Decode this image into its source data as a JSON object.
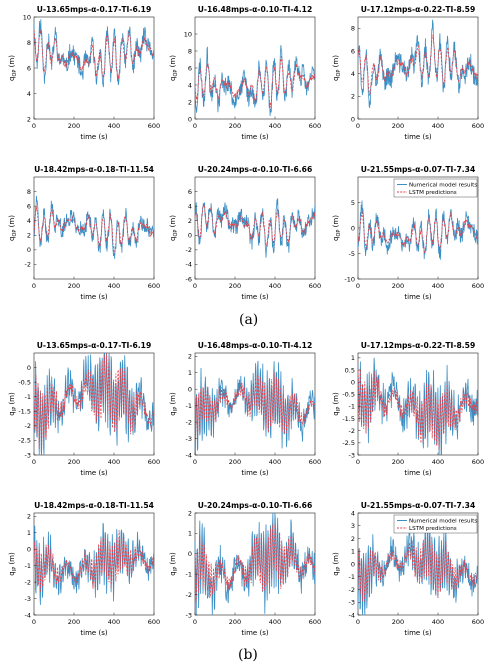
{
  "captions": {
    "a": "(a)",
    "b": "(b)"
  },
  "colors": {
    "numerical": "#3b8fc4",
    "lstm": "#e2434b"
  },
  "chart_data": [
    {
      "type": "line",
      "panel": "a",
      "title": "U-13.65mps-α-0.17-TI-6.19",
      "xlabel": "time (s)",
      "ylabel": "q_OP (m)",
      "xlim": [
        0,
        600
      ],
      "ylim": [
        2,
        10
      ],
      "xticks": [
        0,
        200,
        400,
        600
      ],
      "yticks": [
        2,
        4,
        6,
        8,
        10
      ],
      "mean": 7.0,
      "amp_num": 1.7,
      "amp_lstm": 1.4,
      "seed": 11,
      "series": [
        {
          "name": "Numerical model results"
        },
        {
          "name": "LSTM predictions"
        }
      ]
    },
    {
      "type": "line",
      "panel": "a",
      "title": "U-16.48mps-α-0.10-TI-4.12",
      "xlabel": "time (s)",
      "ylabel": "q_OP (m)",
      "xlim": [
        0,
        600
      ],
      "ylim": [
        0,
        12
      ],
      "xticks": [
        0,
        200,
        400,
        600
      ],
      "yticks": [
        0,
        2,
        4,
        6,
        8,
        10
      ],
      "mean": 4.2,
      "amp_num": 2.6,
      "amp_lstm": 2.0,
      "seed": 23,
      "series": [
        {
          "name": "Numerical model results"
        },
        {
          "name": "LSTM predictions"
        }
      ]
    },
    {
      "type": "line",
      "panel": "a",
      "title": "U-17.12mps-α-0.22-TI-8.59",
      "xlabel": "time (s)",
      "ylabel": "q_OP (m)",
      "xlim": [
        0,
        600
      ],
      "ylim": [
        0,
        9
      ],
      "xticks": [
        0,
        200,
        400,
        600
      ],
      "yticks": [
        0,
        2,
        4,
        6,
        8
      ],
      "mean": 4.6,
      "amp_num": 2.0,
      "amp_lstm": 1.6,
      "seed": 37,
      "series": [
        {
          "name": "Numerical model results"
        },
        {
          "name": "LSTM predictions"
        }
      ]
    },
    {
      "type": "line",
      "panel": "a",
      "title": "U-18.42mps-α-0.18-TI-11.54",
      "xlabel": "time (s)",
      "ylabel": "q_OP (m)",
      "xlim": [
        0,
        600
      ],
      "ylim": [
        -4,
        10
      ],
      "xticks": [
        0,
        200,
        400,
        600
      ],
      "yticks": [
        -2,
        0,
        2,
        4,
        6,
        8
      ],
      "mean": 3.0,
      "amp_num": 2.5,
      "amp_lstm": 2.0,
      "seed": 41,
      "series": [
        {
          "name": "Numerical model results"
        },
        {
          "name": "LSTM predictions"
        }
      ]
    },
    {
      "type": "line",
      "panel": "a",
      "title": "U-20.24mps-α-0.10-TI-6.66",
      "xlabel": "time (s)",
      "ylabel": "q_OP (m)",
      "xlim": [
        0,
        600
      ],
      "ylim": [
        -6,
        8
      ],
      "xticks": [
        0,
        200,
        400,
        600
      ],
      "yticks": [
        -6,
        -4,
        -2,
        0,
        2,
        4,
        6
      ],
      "mean": 1.5,
      "amp_num": 2.6,
      "amp_lstm": 2.0,
      "seed": 53,
      "series": [
        {
          "name": "Numerical model results"
        },
        {
          "name": "LSTM predictions"
        }
      ]
    },
    {
      "type": "line",
      "panel": "a",
      "title": "U-21.55mps-α-0.07-TI-7.34",
      "xlabel": "time (s)",
      "ylabel": "q_OP (m)",
      "xlim": [
        0,
        600
      ],
      "ylim": [
        -10,
        10
      ],
      "xticks": [
        0,
        200,
        400,
        600
      ],
      "yticks": [
        -10,
        -5,
        0,
        5
      ],
      "mean": -1.0,
      "amp_num": 3.6,
      "amp_lstm": 2.8,
      "seed": 67,
      "legend": "top-right",
      "series": [
        {
          "name": "Numerical model results"
        },
        {
          "name": "LSTM predictions"
        }
      ]
    },
    {
      "type": "line",
      "panel": "b",
      "title": "U-13.65mps-α-0.17-TI-6.19",
      "xlabel": "time (s)",
      "ylabel": "q_IP (m)",
      "xlim": [
        0,
        600
      ],
      "ylim": [
        -3,
        0.5
      ],
      "xticks": [
        0,
        200,
        400,
        600
      ],
      "yticks": [
        -3,
        -2.5,
        -2,
        -1.5,
        -1,
        -0.5,
        0
      ],
      "mean": -1.1,
      "amp_num": 1.25,
      "amp_lstm": 1.05,
      "seed": 71,
      "series": [
        {
          "name": "Numerical model results"
        },
        {
          "name": "LSTM predictions"
        }
      ]
    },
    {
      "type": "line",
      "panel": "b",
      "title": "U-16.48mps-α-0.10-TI-4.12",
      "xlabel": "time (s)",
      "ylabel": "q_IP (m)",
      "xlim": [
        0,
        600
      ],
      "ylim": [
        -4,
        2.2
      ],
      "xticks": [
        0,
        200,
        400,
        600
      ],
      "yticks": [
        -4,
        -3,
        -2,
        -1,
        0,
        1,
        2
      ],
      "mean": -0.9,
      "amp_num": 1.8,
      "amp_lstm": 1.4,
      "seed": 83,
      "series": [
        {
          "name": "Numerical model results"
        },
        {
          "name": "LSTM predictions"
        }
      ]
    },
    {
      "type": "line",
      "panel": "b",
      "title": "U-17.12mps-α-0.22-TI-8.59",
      "xlabel": "time (s)",
      "ylabel": "q_IP (m)",
      "xlim": [
        0,
        600
      ],
      "ylim": [
        -3,
        1.2
      ],
      "xticks": [
        0,
        200,
        400,
        600
      ],
      "yticks": [
        -3,
        -2.5,
        -2,
        -1.5,
        -1,
        -0.5,
        0,
        0.5,
        1
      ],
      "mean": -1.0,
      "amp_num": 1.3,
      "amp_lstm": 1.05,
      "seed": 97,
      "series": [
        {
          "name": "Numerical model results"
        },
        {
          "name": "LSTM predictions"
        }
      ]
    },
    {
      "type": "line",
      "panel": "b",
      "title": "U-18.42mps-α-0.18-TI-11.54",
      "xlabel": "time (s)",
      "ylabel": "q_IP (m)",
      "xlim": [
        0,
        600
      ],
      "ylim": [
        -4,
        2.2
      ],
      "xticks": [
        0,
        200,
        400,
        600
      ],
      "yticks": [
        -4,
        -3,
        -2,
        -1,
        0,
        1,
        2
      ],
      "mean": -0.9,
      "amp_num": 1.6,
      "amp_lstm": 1.3,
      "seed": 101,
      "series": [
        {
          "name": "Numerical model results"
        },
        {
          "name": "LSTM predictions"
        }
      ]
    },
    {
      "type": "line",
      "panel": "b",
      "title": "U-20.24mps-α-0.10-TI-6.66",
      "xlabel": "time (s)",
      "ylabel": "q_IP (m)",
      "xlim": [
        0,
        600
      ],
      "ylim": [
        -3,
        2
      ],
      "xticks": [
        0,
        200,
        400,
        600
      ],
      "yticks": [
        -3,
        -2,
        -1,
        0,
        1,
        2
      ],
      "mean": -0.6,
      "amp_num": 1.6,
      "amp_lstm": 1.3,
      "seed": 113,
      "series": [
        {
          "name": "Numerical model results"
        },
        {
          "name": "LSTM predictions"
        }
      ]
    },
    {
      "type": "line",
      "panel": "b",
      "title": "U-21.55mps-α-0.07-TI-7.34",
      "xlabel": "time (s)",
      "ylabel": "q_IP (m)",
      "xlim": [
        0,
        600
      ],
      "ylim": [
        -4,
        4
      ],
      "xticks": [
        0,
        200,
        400,
        600
      ],
      "yticks": [
        -4,
        -3,
        -2,
        -1,
        0,
        1,
        2,
        3,
        4
      ],
      "mean": -0.2,
      "amp_num": 2.2,
      "amp_lstm": 1.7,
      "seed": 127,
      "legend": "top-right",
      "series": [
        {
          "name": "Numerical model results"
        },
        {
          "name": "LSTM predictions"
        }
      ]
    }
  ]
}
